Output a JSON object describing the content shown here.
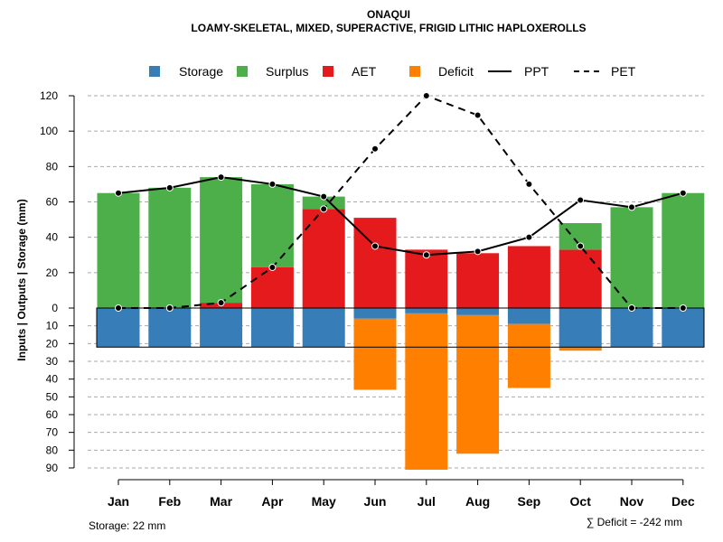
{
  "chart_data": {
    "type": "bar",
    "title": "ONAQUI",
    "subtitle": "LOAMY-SKELETAL, MIXED, SUPERACTIVE, FRIGID LITHIC HAPLOXEROLLS",
    "ylabel": "Inputs | Outputs | Storage    (mm)",
    "categories": [
      "Jan",
      "Feb",
      "Mar",
      "Apr",
      "May",
      "Jun",
      "Jul",
      "Aug",
      "Sep",
      "Oct",
      "Nov",
      "Dec"
    ],
    "upper_ticks": [
      "0",
      "20",
      "40",
      "60",
      "80",
      "100",
      "120"
    ],
    "lower_ticks": [
      "10",
      "20",
      "30",
      "40",
      "50",
      "60",
      "70",
      "80",
      "90"
    ],
    "ylim_upper": [
      0,
      120
    ],
    "ylim_lower": [
      0,
      90
    ],
    "legend": [
      "Storage",
      "Surplus",
      "AET",
      "Deficit",
      "PPT",
      "PET"
    ],
    "colors": {
      "storage": "#377eb8",
      "surplus": "#4daf4a",
      "aet": "#e41a1c",
      "deficit": "#ff7f00",
      "line": "#000000",
      "grid": "#aaaaaa"
    },
    "series": [
      {
        "name": "Surplus",
        "values": [
          65,
          68,
          71,
          47,
          7,
          0,
          0,
          0,
          0,
          15,
          57,
          65
        ]
      },
      {
        "name": "AET",
        "values": [
          0,
          0,
          3,
          23,
          56,
          51,
          33,
          31,
          35,
          33,
          0,
          0
        ]
      },
      {
        "name": "Storage",
        "values": [
          22,
          22,
          22,
          22,
          22,
          6,
          3,
          4,
          9,
          22,
          22,
          22
        ]
      },
      {
        "name": "Deficit",
        "values": [
          0,
          0,
          0,
          0,
          0,
          40,
          88,
          78,
          36,
          2,
          0,
          0
        ]
      },
      {
        "name": "PPT",
        "values": [
          65,
          68,
          74,
          70,
          63,
          35,
          30,
          32,
          40,
          61,
          57,
          65
        ]
      },
      {
        "name": "PET",
        "values": [
          0,
          0,
          3,
          23,
          56,
          90,
          120,
          109,
          70,
          35,
          0,
          0
        ]
      }
    ],
    "storage_capacity": 22
  },
  "footer": {
    "storage_text": "Storage: 22 mm",
    "deficit_text": "∑ Deficit = -242 mm"
  }
}
